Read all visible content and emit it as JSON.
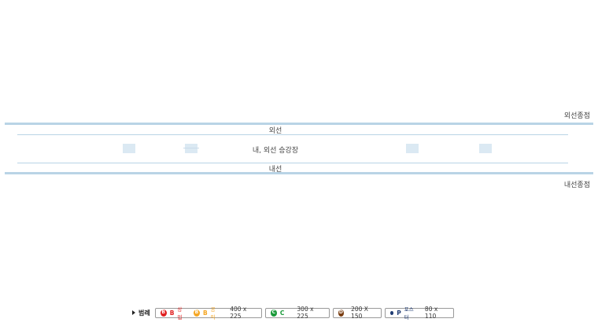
{
  "diagram": {
    "outer_end_label": "외선종점",
    "outer_line_label": "외선",
    "platform_label": "내, 외선 승강장",
    "inner_line_label": "내선",
    "inner_end_label": "내선종점"
  },
  "legend": {
    "title": "범례",
    "items": [
      {
        "parts": [
          {
            "icon": "B",
            "code": "B",
            "sub": "상업",
            "color": "#e02020"
          },
          {
            "icon": "B",
            "code": "B",
            "sub": "공익",
            "color": "#f5a623"
          }
        ],
        "size": "400 x 225"
      },
      {
        "parts": [
          {
            "icon": "C",
            "code": "C",
            "sub": "",
            "color": "#1a9a3a"
          }
        ],
        "size": "300 x 225"
      },
      {
        "parts": [
          {
            "icon": "D",
            "code": "",
            "sub": "",
            "color": "#7a3e12"
          }
        ],
        "size": "200 X 150"
      },
      {
        "parts": [
          {
            "icon": "dot",
            "code": "P",
            "sub": "포스터",
            "color": "#1f3b73"
          }
        ],
        "size": "80 x 110"
      }
    ]
  }
}
